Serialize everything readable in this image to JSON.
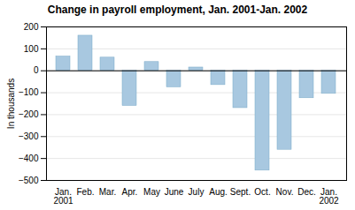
{
  "chart_data": {
    "type": "bar",
    "title": "Change in payroll employment, Jan. 2001-Jan. 2002",
    "ylabel": "In thousands",
    "categories": [
      "Jan.\n2001",
      "Feb.",
      "Mar.",
      "Apr.",
      "May",
      "June",
      "July",
      "Aug.",
      "Sept.",
      "Oct.",
      "Nov.",
      "Dec.",
      "Jan.\n2002"
    ],
    "values": [
      65,
      160,
      60,
      -160,
      40,
      -75,
      15,
      -65,
      -170,
      -455,
      -360,
      -125,
      -105
    ],
    "color": "#A8C8E0",
    "ylim": [
      -500,
      200
    ],
    "yticks": [
      -500,
      -400,
      -300,
      -200,
      -100,
      0,
      100,
      200
    ],
    "grid": true
  }
}
